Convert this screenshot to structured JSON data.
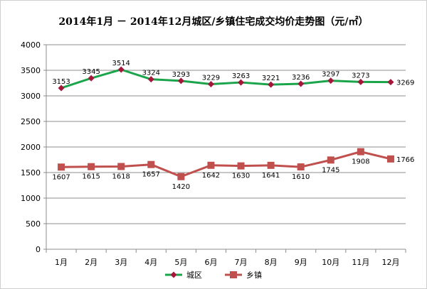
{
  "chart_data": {
    "type": "line",
    "title": "2014年1月 － 2014年12月城区/乡镇住宅成交均价走势图（元/㎡）",
    "categories": [
      "1月",
      "2月",
      "3月",
      "4月",
      "5月",
      "6月",
      "7月",
      "8月",
      "9月",
      "10月",
      "11月",
      "12月"
    ],
    "ylim": [
      0,
      4000
    ],
    "yticks": [
      0,
      500,
      1000,
      1500,
      2000,
      2500,
      3000,
      3500,
      4000
    ],
    "grid": true,
    "legend_position": "bottom",
    "series": [
      {
        "name": "城区",
        "color": "#1aa54a",
        "marker_color": "#a4163a",
        "marker": "diamond",
        "values": [
          3153,
          3345,
          3514,
          3324,
          3293,
          3229,
          3263,
          3221,
          3236,
          3297,
          3273,
          3269
        ]
      },
      {
        "name": "乡镇",
        "color": "#c0504d",
        "marker_color": "#c0504d",
        "marker": "square",
        "values": [
          1607,
          1615,
          1618,
          1657,
          1420,
          1642,
          1630,
          1641,
          1610,
          1745,
          1908,
          1766
        ]
      }
    ]
  }
}
